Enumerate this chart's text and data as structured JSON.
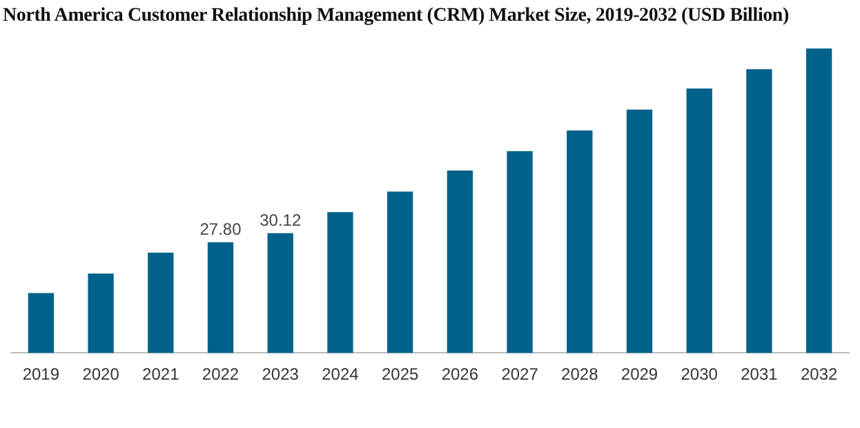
{
  "chart_data": {
    "type": "bar",
    "title": "North America Customer Relationship Management (CRM) Market Size, 2019-2032 (USD Billion)",
    "categories": [
      "2019",
      "2020",
      "2021",
      "2022",
      "2023",
      "2024",
      "2025",
      "2026",
      "2027",
      "2028",
      "2029",
      "2030",
      "2031",
      "2032"
    ],
    "values": [
      15.0,
      19.9,
      25.2,
      27.8,
      30.12,
      35.4,
      40.6,
      45.9,
      50.8,
      56.0,
      61.3,
      66.6,
      71.5,
      76.7
    ],
    "value_labels": [
      null,
      null,
      null,
      "27.80",
      "30.12",
      null,
      null,
      null,
      null,
      null,
      null,
      null,
      null,
      null
    ],
    "color": "#00628b",
    "grid": false,
    "legend": false
  }
}
